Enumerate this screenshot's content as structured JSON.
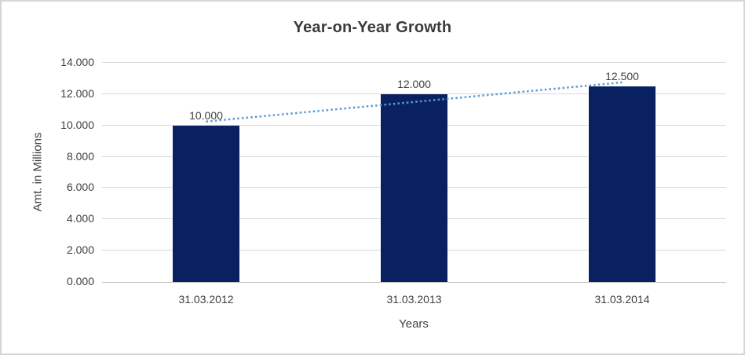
{
  "window": {
    "background": "#ffffff",
    "border_color": "#d6d6d6"
  },
  "chart_data": {
    "type": "bar",
    "title": "Year-on-Year Growth",
    "xlabel": "Years",
    "ylabel": "Amt. in Millions",
    "categories": [
      "31.03.2012",
      "31.03.2013",
      "31.03.2014"
    ],
    "values": [
      10,
      12,
      12.5
    ],
    "value_labels": [
      "10.000",
      "12.000",
      "12.500"
    ],
    "ylim": [
      0,
      14
    ],
    "ytick_step": 2,
    "yticks": [
      0,
      2,
      4,
      6,
      8,
      10,
      12,
      14
    ],
    "ytick_labels": [
      "0.000",
      "2.000",
      "4.000",
      "6.000",
      "8.000",
      "10.000",
      "12.000",
      "14.000"
    ],
    "grid": "horizontal",
    "legend_position": "none",
    "bar_color": "#0a2161",
    "gridline_color": "#d9d9d9",
    "axis_line_color": "#c0c0c0",
    "text_color": "#404040",
    "title_color": "#3b3b3b",
    "trendline": {
      "style": "dotted",
      "color": "#5b9bd5",
      "start_value": 10.25,
      "end_value": 12.75
    }
  }
}
